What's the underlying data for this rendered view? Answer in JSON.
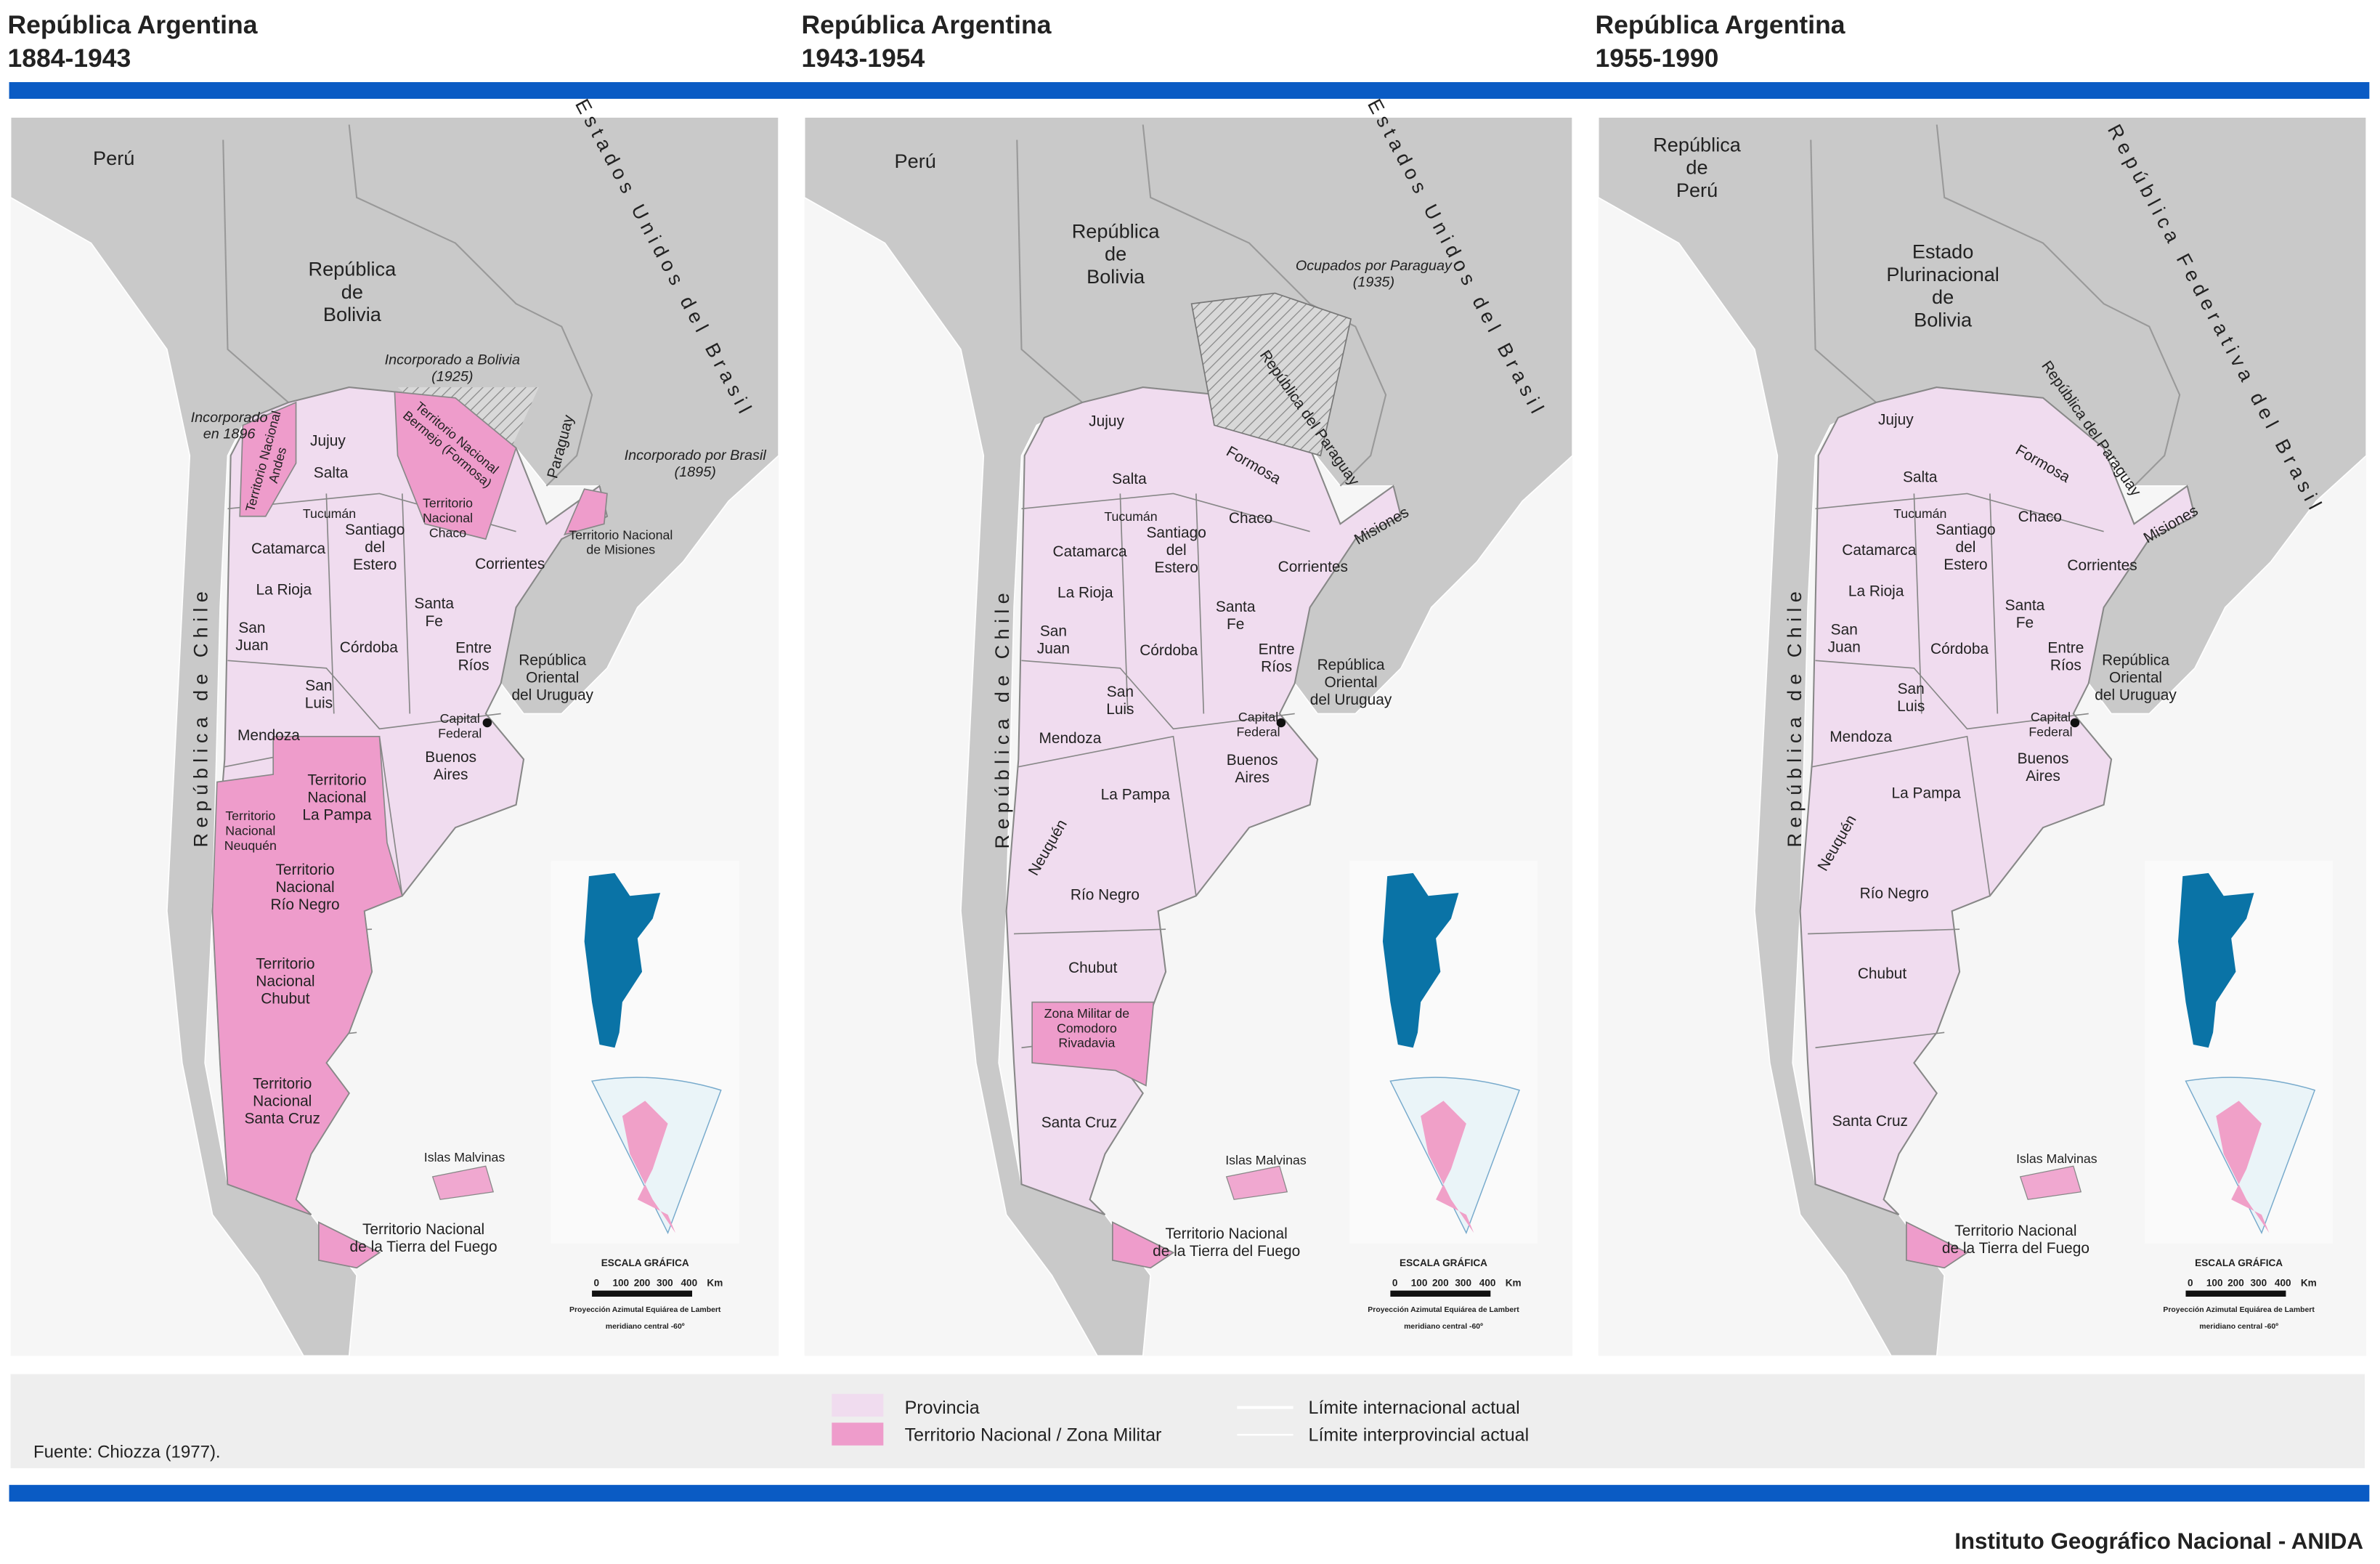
{
  "panels": [
    {
      "title": "República Argentina",
      "years": "1884-1943",
      "labels": [
        [
          "Perú"
        ],
        [
          "República",
          "de",
          "Bolivia"
        ],
        [
          "Estados Unidos del Brasil"
        ],
        [
          "Incorporado a Bolivia",
          "(1925)"
        ],
        [
          "Incorporado",
          "en 1896"
        ],
        [
          "Territorio Nacional",
          "Andes"
        ],
        [
          "Jujuy"
        ],
        [
          "Salta"
        ],
        [
          "Territorio Nacional",
          "Bermejo (Formosa)"
        ],
        [
          "Paraguay"
        ],
        [
          "Incorporado por Brasil",
          "(1895)"
        ],
        [
          "Territorio",
          "Nacional",
          "Chaco"
        ],
        [
          "Territorio Nacional",
          "de Misiones"
        ],
        [
          "Tucumán"
        ],
        [
          "Santiago",
          "del",
          "Estero"
        ],
        [
          "Catamarca"
        ],
        [
          "Corrientes"
        ],
        [
          "La Rioja"
        ],
        [
          "Santa",
          "Fe"
        ],
        [
          "San",
          "Juan"
        ],
        [
          "Córdoba"
        ],
        [
          "Entre",
          "Ríos"
        ],
        [
          "República",
          "Oriental",
          "del Uruguay"
        ],
        [
          "San",
          "Luis"
        ],
        [
          "Capital",
          "Federal"
        ],
        [
          "Mendoza"
        ],
        [
          "Buenos",
          "Aires"
        ],
        [
          "Territorio",
          "Nacional",
          "La Pampa"
        ],
        [
          "Territorio",
          "Nacional",
          "Neuquén"
        ],
        [
          "República de Chile"
        ],
        [
          "Territorio",
          "Nacional",
          "Río Negro"
        ],
        [
          "Territorio",
          "Nacional",
          "Chubut"
        ],
        [
          "Territorio",
          "Nacional",
          "Santa Cruz"
        ],
        [
          "Islas Malvinas"
        ],
        [
          "Territorio Nacional",
          "de la Tierra del Fuego"
        ]
      ],
      "inset": {
        "scale_title": "ESCALA GRÁFICA",
        "scale_ticks": [
          "0",
          "100",
          "200",
          "300",
          "400"
        ],
        "unit": "Km",
        "projection": "Proyección Azimutal Equiárea de Lambert",
        "meridian": "meridiano central -60º"
      }
    },
    {
      "title": "República Argentina",
      "years": "1943-1954",
      "labels": [
        [
          "Perú"
        ],
        [
          "República",
          "de",
          "Bolivia"
        ],
        [
          "Estados Unidos del Brasil"
        ],
        [
          "Ocupados por Paraguay",
          "(1935)"
        ],
        [
          "República del Paraguay"
        ],
        [
          "Jujuy"
        ],
        [
          "Formosa"
        ],
        [
          "Salta"
        ],
        [
          "Tucumán"
        ],
        [
          "Chaco"
        ],
        [
          "Santiago",
          "del",
          "Estero"
        ],
        [
          "Misiones"
        ],
        [
          "Catamarca"
        ],
        [
          "Corrientes"
        ],
        [
          "La Rioja"
        ],
        [
          "Santa",
          "Fe"
        ],
        [
          "San",
          "Juan"
        ],
        [
          "Córdoba"
        ],
        [
          "Entre",
          "Ríos"
        ],
        [
          "República",
          "Oriental",
          "del Uruguay"
        ],
        [
          "San",
          "Luis"
        ],
        [
          "Capital",
          "Federal"
        ],
        [
          "Mendoza"
        ],
        [
          "Buenos",
          "Aires"
        ],
        [
          "República de Chile"
        ],
        [
          "La Pampa"
        ],
        [
          "Neuquén"
        ],
        [
          "Río Negro"
        ],
        [
          "Chubut"
        ],
        [
          "Zona Militar de",
          "Comodoro",
          "Rivadavia"
        ],
        [
          "Santa Cruz"
        ],
        [
          "Islas Malvinas"
        ],
        [
          "Territorio Nacional",
          "de la Tierra del Fuego"
        ]
      ],
      "inset": {
        "scale_title": "ESCALA GRÁFICA",
        "scale_ticks": [
          "0",
          "100",
          "200",
          "300",
          "400"
        ],
        "unit": "Km",
        "projection": "Proyección Azimutal Equiárea de Lambert",
        "meridian": "meridiano central -60º"
      }
    },
    {
      "title": "República Argentina",
      "years": "1955-1990",
      "labels": [
        [
          "República",
          "de",
          "Perú"
        ],
        [
          "Estado",
          "Plurinacional",
          "de",
          "Bolivia"
        ],
        [
          "República Federativa del Brasil"
        ],
        [
          "República del Paraguay"
        ],
        [
          "Jujuy"
        ],
        [
          "Formosa"
        ],
        [
          "Salta"
        ],
        [
          "Tucumán"
        ],
        [
          "Chaco"
        ],
        [
          "Santiago",
          "del",
          "Estero"
        ],
        [
          "Misiones"
        ],
        [
          "Catamarca"
        ],
        [
          "Corrientes"
        ],
        [
          "La Rioja"
        ],
        [
          "Santa",
          "Fe"
        ],
        [
          "San",
          "Juan"
        ],
        [
          "Córdoba"
        ],
        [
          "Entre",
          "Ríos"
        ],
        [
          "República",
          "Oriental",
          "del Uruguay"
        ],
        [
          "San",
          "Luis"
        ],
        [
          "Capital",
          "Federal"
        ],
        [
          "Mendoza"
        ],
        [
          "Buenos",
          "Aires"
        ],
        [
          "República de Chile"
        ],
        [
          "La Pampa"
        ],
        [
          "Neuquén"
        ],
        [
          "Río Negro"
        ],
        [
          "Chubut"
        ],
        [
          "Santa Cruz"
        ],
        [
          "Islas Malvinas"
        ],
        [
          "Territorio Nacional",
          "de la Tierra del Fuego"
        ]
      ],
      "inset": {
        "scale_title": "ESCALA GRÁFICA",
        "scale_ticks": [
          "0",
          "100",
          "200",
          "300",
          "400"
        ],
        "unit": "Km",
        "projection": "Proyección Azimutal Equiárea de Lambert",
        "meridian": "meridiano central -60º"
      }
    }
  ],
  "legend": {
    "fills": [
      "Provincia",
      "Territorio Nacional / Zona Militar"
    ],
    "lines": [
      "Límite internacional actual",
      "Límite interprovincial actual"
    ]
  },
  "source": "Fuente: Chiozza (1977).",
  "footer": "Instituto Geográfico Nacional - ANIDA"
}
